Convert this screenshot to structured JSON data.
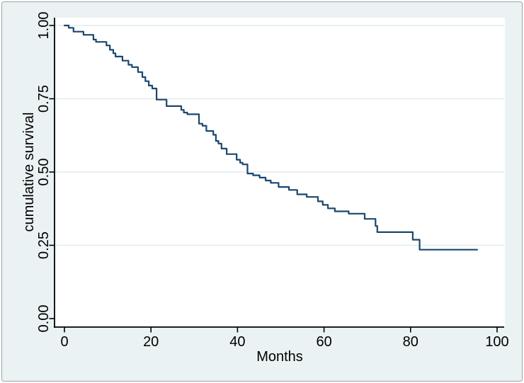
{
  "chart_data": {
    "type": "line",
    "subtype": "kaplan-meier-step",
    "title": "",
    "xlabel": "Months",
    "ylabel": "cumulative survival",
    "xlim": [
      0,
      100
    ],
    "ylim": [
      0,
      1
    ],
    "xticks": {
      "values": [
        0,
        20,
        40,
        60,
        80,
        100
      ],
      "labels": [
        "0",
        "20",
        "40",
        "60",
        "80",
        "100"
      ]
    },
    "yticks": {
      "values": [
        0,
        0.25,
        0.5,
        0.75,
        1
      ],
      "labels": [
        "0.00",
        "0.25",
        "0.50",
        "0.75",
        "1.00"
      ]
    },
    "grid": {
      "horizontal": true,
      "vertical": false,
      "grid_at": [
        0.25,
        0.5,
        0.75,
        1.0
      ]
    },
    "legend": "none",
    "series": [
      {
        "name": "cumulative survival",
        "color": "#1a476f",
        "draw": "step-after",
        "end_time": 95.4,
        "points": [
          [
            0.0,
            1.0
          ],
          [
            1.0,
            0.992
          ],
          [
            2.1,
            0.979
          ],
          [
            4.4,
            0.968
          ],
          [
            6.7,
            0.952
          ],
          [
            7.3,
            0.944
          ],
          [
            9.7,
            0.932
          ],
          [
            10.5,
            0.917
          ],
          [
            11.3,
            0.905
          ],
          [
            11.8,
            0.894
          ],
          [
            13.4,
            0.88
          ],
          [
            14.8,
            0.866
          ],
          [
            15.6,
            0.858
          ],
          [
            17.0,
            0.841
          ],
          [
            18.0,
            0.824
          ],
          [
            18.7,
            0.81
          ],
          [
            19.5,
            0.795
          ],
          [
            20.3,
            0.785
          ],
          [
            21.3,
            0.747
          ],
          [
            23.6,
            0.725
          ],
          [
            27.0,
            0.712
          ],
          [
            27.6,
            0.703
          ],
          [
            28.4,
            0.697
          ],
          [
            31.1,
            0.665
          ],
          [
            31.9,
            0.658
          ],
          [
            32.8,
            0.64
          ],
          [
            34.4,
            0.627
          ],
          [
            35.0,
            0.606
          ],
          [
            35.6,
            0.597
          ],
          [
            36.3,
            0.58
          ],
          [
            37.5,
            0.561
          ],
          [
            39.8,
            0.542
          ],
          [
            40.6,
            0.532
          ],
          [
            41.2,
            0.526
          ],
          [
            42.3,
            0.495
          ],
          [
            43.6,
            0.489
          ],
          [
            45.1,
            0.481
          ],
          [
            46.5,
            0.471
          ],
          [
            47.7,
            0.463
          ],
          [
            49.5,
            0.449
          ],
          [
            51.9,
            0.439
          ],
          [
            53.8,
            0.424
          ],
          [
            56.0,
            0.415
          ],
          [
            58.6,
            0.4
          ],
          [
            59.7,
            0.388
          ],
          [
            60.9,
            0.376
          ],
          [
            62.5,
            0.366
          ],
          [
            65.7,
            0.358
          ],
          [
            69.4,
            0.34
          ],
          [
            71.9,
            0.316
          ],
          [
            72.3,
            0.295
          ],
          [
            80.5,
            0.269
          ],
          [
            82.1,
            0.235
          ]
        ]
      }
    ]
  },
  "style": {
    "canvas_background": "#eaf2f3",
    "plot_background": "#ffffff",
    "grid_color": "#e1ecef",
    "axis_color": "#000000",
    "text_color": "#000000",
    "outer_border_color": "#9da1a4",
    "curve_color": "#1a476f"
  }
}
